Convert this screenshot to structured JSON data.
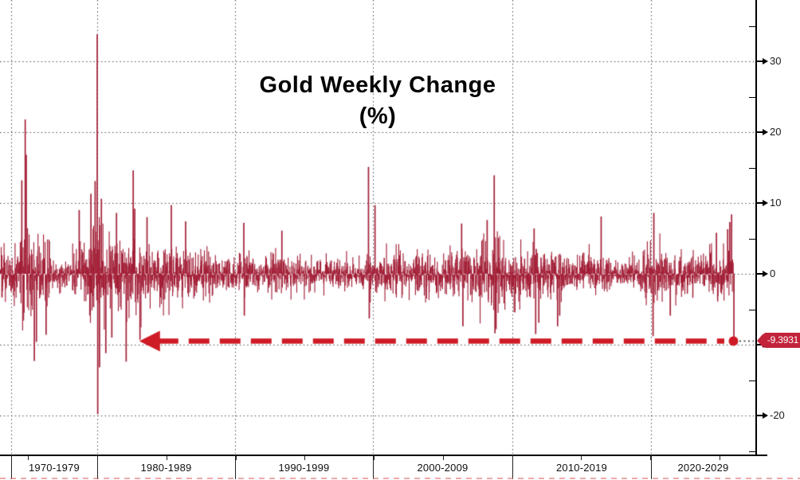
{
  "title": {
    "line1": "Gold Weekly Change",
    "line2": "(%)"
  },
  "chart_data": {
    "type": "bar",
    "title": "Gold Weekly Change (%)",
    "unit": "%",
    "grid": "dotted",
    "legend": "none",
    "y_axis": {
      "side": "right",
      "major_ticks": [
        30,
        20,
        10,
        0,
        -10,
        -20
      ],
      "minor_ticks": [
        35,
        25,
        15,
        5,
        -5,
        -15,
        -25
      ],
      "ylim": [
        -25.5,
        38.6
      ]
    },
    "x_axis": {
      "decade_labels": [
        "1970-1979",
        "1980-1989",
        "1990-1999",
        "2000-2009",
        "2010-2019",
        "2020-2029"
      ],
      "five_year_tick_years": [
        1975,
        1980,
        1985,
        1990,
        1995,
        2000,
        2005,
        2010,
        2015,
        2020,
        2025
      ],
      "visible_range_years": [
        1973,
        2026
      ]
    },
    "series": [
      {
        "name": "Gold weekly % change",
        "points_note": "≈2800 weekly bars from ~1973 to the latest week; dense noise whose envelope is described by volatility_segments, with the readable extreme weeks listed in notable_weeks"
      }
    ],
    "volatility_segments": [
      {
        "from": 1973.0,
        "to": 1974.3,
        "vol": 2.1
      },
      {
        "from": 1974.3,
        "to": 1975.4,
        "vol": 2.9
      },
      {
        "from": 1975.4,
        "to": 1976.6,
        "vol": 2.3
      },
      {
        "from": 1976.6,
        "to": 1978.2,
        "vol": 1.25
      },
      {
        "from": 1978.2,
        "to": 1979.3,
        "vol": 1.8
      },
      {
        "from": 1979.3,
        "to": 1980.6,
        "vol": 3.4
      },
      {
        "from": 1980.6,
        "to": 1983.2,
        "vol": 2.7
      },
      {
        "from": 1983.2,
        "to": 1985.5,
        "vol": 2.1
      },
      {
        "from": 1985.5,
        "to": 1988.0,
        "vol": 1.8
      },
      {
        "from": 1988.0,
        "to": 1990.0,
        "vol": 1.45
      },
      {
        "from": 1990.0,
        "to": 1996.0,
        "vol": 1.3
      },
      {
        "from": 1996.0,
        "to": 1999.5,
        "vol": 1.15
      },
      {
        "from": 1999.5,
        "to": 2001.0,
        "vol": 1.6
      },
      {
        "from": 2001.0,
        "to": 2005.5,
        "vol": 1.5
      },
      {
        "from": 2005.5,
        "to": 2007.5,
        "vol": 1.85
      },
      {
        "from": 2007.5,
        "to": 2009.6,
        "vol": 2.5
      },
      {
        "from": 2009.6,
        "to": 2012.6,
        "vol": 1.95
      },
      {
        "from": 2012.6,
        "to": 2013.8,
        "vol": 1.8
      },
      {
        "from": 2013.8,
        "to": 2016.2,
        "vol": 1.5
      },
      {
        "from": 2016.2,
        "to": 2019.5,
        "vol": 1.2
      },
      {
        "from": 2019.5,
        "to": 2020.8,
        "vol": 2.1
      },
      {
        "from": 2020.8,
        "to": 2022.3,
        "vol": 1.6
      },
      {
        "from": 2022.3,
        "to": 2024.3,
        "vol": 1.5
      },
      {
        "from": 2024.3,
        "to": 2026.1,
        "vol": 1.85
      }
    ],
    "notable_weeks": [
      {
        "year": 1974.55,
        "pct": 13.2
      },
      {
        "year": 1974.8,
        "pct": 21.8
      },
      {
        "year": 1974.87,
        "pct": 16.8
      },
      {
        "year": 1975.45,
        "pct": -12.3
      },
      {
        "year": 1975.6,
        "pct": -9.6
      },
      {
        "year": 1976.3,
        "pct": -8.6
      },
      {
        "year": 1978.7,
        "pct": 9.0
      },
      {
        "year": 1979.55,
        "pct": 11.3
      },
      {
        "year": 1979.85,
        "pct": 13.1
      },
      {
        "year": 1980.0,
        "pct": 33.8
      },
      {
        "year": 1980.04,
        "pct": -19.8
      },
      {
        "year": 1980.17,
        "pct": -13.2
      },
      {
        "year": 1980.3,
        "pct": 10.6
      },
      {
        "year": 1980.62,
        "pct": -11.2
      },
      {
        "year": 1981.05,
        "pct": -9.0
      },
      {
        "year": 1981.4,
        "pct": 8.6
      },
      {
        "year": 1982.1,
        "pct": -12.4
      },
      {
        "year": 1982.6,
        "pct": 14.6
      },
      {
        "year": 1982.72,
        "pct": 9.2
      },
      {
        "year": 1983.1,
        "pct": -9.3
      },
      {
        "year": 1983.6,
        "pct": 8.0
      },
      {
        "year": 1985.35,
        "pct": 9.7
      },
      {
        "year": 1986.4,
        "pct": 7.4
      },
      {
        "year": 1990.6,
        "pct": 7.2
      },
      {
        "year": 1990.65,
        "pct": -5.9
      },
      {
        "year": 1993.35,
        "pct": 6.1
      },
      {
        "year": 1999.62,
        "pct": 15.1
      },
      {
        "year": 1999.68,
        "pct": -6.3
      },
      {
        "year": 2000.1,
        "pct": 9.7
      },
      {
        "year": 2006.35,
        "pct": 7.1
      },
      {
        "year": 2006.45,
        "pct": -7.4
      },
      {
        "year": 2008.2,
        "pct": 7.6
      },
      {
        "year": 2008.72,
        "pct": 13.9
      },
      {
        "year": 2008.78,
        "pct": -8.4
      },
      {
        "year": 2008.85,
        "pct": -7.8
      },
      {
        "year": 2011.6,
        "pct": 6.4
      },
      {
        "year": 2011.72,
        "pct": -8.5
      },
      {
        "year": 2011.95,
        "pct": -6.9
      },
      {
        "year": 2013.3,
        "pct": -7.4
      },
      {
        "year": 2013.45,
        "pct": -5.9
      },
      {
        "year": 2016.45,
        "pct": 8.1
      },
      {
        "year": 2020.2,
        "pct": -8.8
      },
      {
        "year": 2020.27,
        "pct": 8.6
      },
      {
        "year": 2021.45,
        "pct": -5.9
      },
      {
        "year": 2024.8,
        "pct": 5.8
      },
      {
        "year": 2025.6,
        "pct": 6.3
      },
      {
        "year": 2025.75,
        "pct": 7.3
      },
      {
        "year": 2025.88,
        "pct": 8.4
      },
      {
        "year": 2026.05,
        "pct": -9.3931
      }
    ],
    "last_value": -9.3931,
    "annotation": {
      "badge_label": "-9.3931",
      "arrow_y_pct": -9.3931,
      "arrow_from_year": 1983.1,
      "description": "thick dashed red arrow pointing left from the red dot at the latest weekly drop back to early 1983"
    },
    "gen": {
      "seed": 20251110,
      "weeks_per_year": 53,
      "start_year": 1973.0,
      "end_year": 2026.08
    },
    "colors": {
      "bars": "#A32038",
      "arrow": "#CE1B26",
      "badge_bg": "#C2233B",
      "badge_text": "#FFFFFF",
      "grid": "#4A4A4A",
      "axis": "#000000",
      "tick_label": "#1A1A1A",
      "background": "#FFFFFF",
      "bottom_strip": "#DD6666",
      "zero_overlay": "rgba(255,255,255,0.55)"
    }
  }
}
